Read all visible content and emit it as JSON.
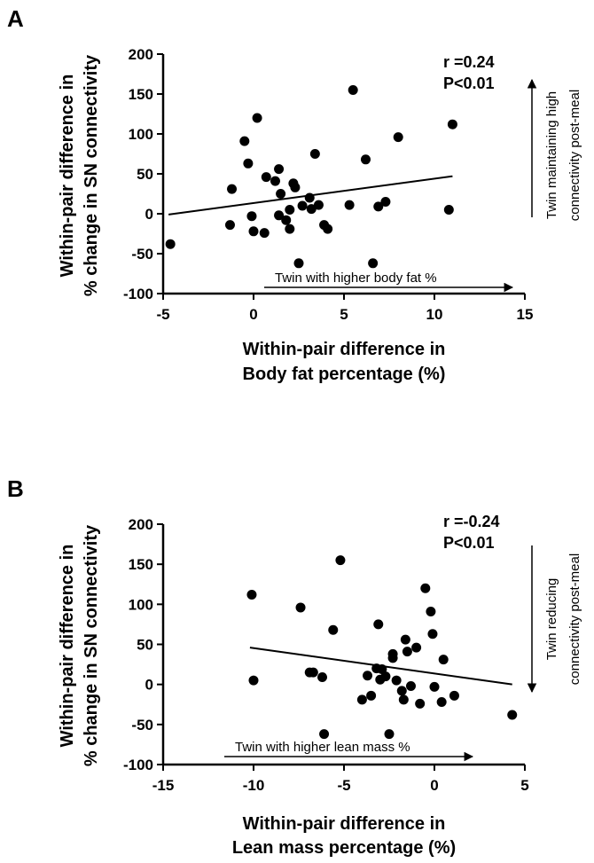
{
  "chart_data": [
    {
      "type": "scatter",
      "panel_label": "A",
      "xlabel_lines": [
        "Within-pair difference in",
        "Body fat percentage (%)"
      ],
      "ylabel_lines": [
        "Within-pair difference in",
        "% change in SN connectivity"
      ],
      "xlim": [
        -5,
        15
      ],
      "ylim": [
        -100,
        200
      ],
      "xticks": [
        -5,
        0,
        5,
        10,
        15
      ],
      "yticks": [
        -100,
        -50,
        0,
        50,
        100,
        150,
        200
      ],
      "stats": [
        "r =0.24",
        "P<0.01"
      ],
      "x_arrow_text": "Twin with higher body fat %",
      "y_arrow_text_lines": [
        "Twin maintaining high",
        "connectivity post-meal"
      ],
      "y_arrow_direction": "up",
      "fit_line": {
        "x": [
          -4.7,
          11
        ],
        "y": [
          -1,
          47
        ]
      },
      "points": {
        "x": [
          -4.6,
          -1.3,
          -1.2,
          -0.5,
          -0.3,
          -0.1,
          0.0,
          0.2,
          0.6,
          0.7,
          1.2,
          1.4,
          1.4,
          1.5,
          1.8,
          2.0,
          2.0,
          2.2,
          2.3,
          2.5,
          2.7,
          3.1,
          3.2,
          3.4,
          3.6,
          3.9,
          4.1,
          5.3,
          5.5,
          6.2,
          6.6,
          6.9,
          7.3,
          8.0,
          10.8,
          11.0
        ],
        "y": [
          -38,
          -14,
          31,
          91,
          63,
          -3,
          -22,
          120,
          -24,
          46,
          41,
          -2,
          56,
          25,
          -8,
          5,
          -19,
          38,
          33,
          -62,
          10,
          20,
          6,
          75,
          11,
          -14,
          -19,
          11,
          155,
          68,
          -62,
          9,
          15,
          96,
          5,
          112
        ]
      }
    },
    {
      "type": "scatter",
      "panel_label": "B",
      "xlabel_lines": [
        "Within-pair difference in",
        "Lean mass percentage  (%)"
      ],
      "ylabel_lines": [
        "Within-pair difference in",
        "% change in SN connectivity"
      ],
      "xlim": [
        -15,
        5
      ],
      "ylim": [
        -100,
        200
      ],
      "xticks": [
        -15,
        -10,
        -5,
        0,
        5
      ],
      "yticks": [
        -100,
        -50,
        0,
        50,
        100,
        150,
        200
      ],
      "stats": [
        "r =-0.24",
        "P<0.01"
      ],
      "x_arrow_text": "Twin with higher lean mass %",
      "y_arrow_text_lines": [
        "Twin reducing",
        "connectivity post-meal"
      ],
      "y_arrow_direction": "down",
      "fit_line": {
        "x": [
          -10.2,
          4.3
        ],
        "y": [
          46,
          0
        ]
      },
      "points": {
        "x": [
          -10.1,
          -10.0,
          -7.4,
          -6.9,
          -6.7,
          -6.2,
          -6.1,
          -5.6,
          -5.2,
          -4.0,
          -3.7,
          -3.5,
          -3.2,
          -3.1,
          -3.0,
          -2.9,
          -2.7,
          -2.5,
          -2.3,
          -2.3,
          -2.1,
          -1.8,
          -1.7,
          -1.6,
          -1.5,
          -1.3,
          -1.0,
          -0.8,
          -0.5,
          -0.2,
          -0.1,
          0.0,
          0.4,
          0.5,
          1.1,
          4.3
        ],
        "y": [
          112,
          5,
          96,
          15,
          15,
          9,
          -62,
          68,
          155,
          -19,
          11,
          -14,
          20,
          75,
          6,
          19,
          10,
          -62,
          33,
          38,
          5,
          -8,
          -19,
          56,
          41,
          -2,
          46,
          -24,
          120,
          91,
          63,
          -3,
          -22,
          31,
          -14,
          -38
        ]
      }
    }
  ]
}
